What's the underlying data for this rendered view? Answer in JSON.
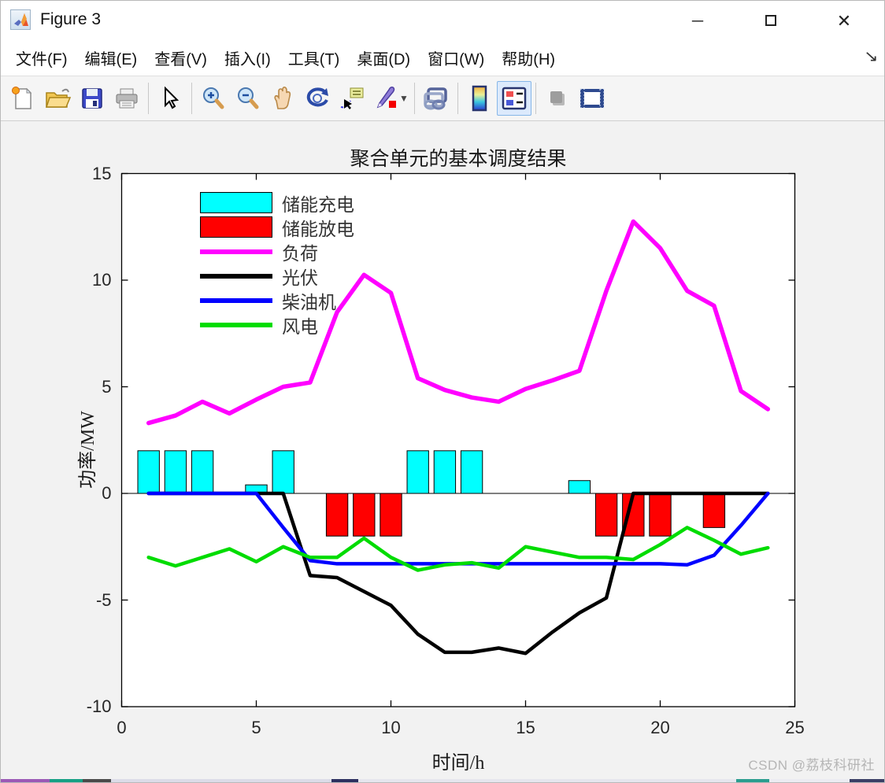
{
  "window": {
    "title": "Figure 3",
    "controls": {
      "minimize": "─",
      "maximize": "",
      "close": "✕"
    }
  },
  "menu": {
    "items": [
      {
        "label": "文件(F)"
      },
      {
        "label": "编辑(E)"
      },
      {
        "label": "查看(V)"
      },
      {
        "label": "插入(I)"
      },
      {
        "label": "工具(T)"
      },
      {
        "label": "桌面(D)"
      },
      {
        "label": "窗口(W)"
      },
      {
        "label": "帮助(H)"
      }
    ],
    "dock_arrow": "↘"
  },
  "toolbar": {
    "icons": [
      "new-figure-icon",
      "open-file-icon",
      "save-figure-icon",
      "print-figure-icon",
      "edit-pointer-icon",
      "zoom-in-icon",
      "zoom-out-icon",
      "pan-hand-icon",
      "rotate-3d-icon",
      "data-cursor-icon",
      "brush-data-icon",
      "link-plot-icon",
      "insert-colorbar-icon",
      "insert-legend-icon",
      "hide-plot-tools-icon",
      "dock-figure-icon"
    ],
    "active_icon": "insert-legend-icon"
  },
  "figure": {
    "watermark": "CSDN @荔枝科研社"
  },
  "chart_data": {
    "type": "bar+line combo",
    "title": "聚合单元的基本调度结果",
    "xlabel": "时间/h",
    "ylabel": "功率/MW",
    "xlim": [
      0,
      25
    ],
    "ylim": [
      -10,
      15
    ],
    "xticks": [
      0,
      5,
      10,
      15,
      20,
      25
    ],
    "yticks": [
      -10,
      -5,
      0,
      5,
      10,
      15
    ],
    "grid": false,
    "legend_position": "upper-left-inside",
    "hours": [
      1,
      2,
      3,
      4,
      5,
      6,
      7,
      8,
      9,
      10,
      11,
      12,
      13,
      14,
      15,
      16,
      17,
      18,
      19,
      20,
      21,
      22,
      23,
      24
    ],
    "bar_width_hours": 0.8,
    "bar_series": [
      {
        "name": "储能充电",
        "color": "#00FFFF",
        "values": [
          2,
          2,
          2,
          0,
          0.4,
          2,
          0,
          0,
          0,
          0,
          2,
          2,
          2,
          0,
          0,
          0,
          0.6,
          0,
          0,
          0,
          0,
          0,
          0,
          0
        ]
      },
      {
        "name": "储能放电",
        "color": "#FF0000",
        "values": [
          0,
          0,
          0,
          0,
          0,
          0,
          0,
          -2,
          -2,
          -2,
          0,
          0,
          0,
          0,
          0,
          0,
          0,
          -2,
          -2,
          -2,
          0,
          -1.6,
          0,
          0
        ]
      }
    ],
    "line_series": [
      {
        "name": "负荷",
        "color": "#FF00FF",
        "width": 5.5,
        "values": [
          3.3,
          3.65,
          4.3,
          3.75,
          4.4,
          5.0,
          5.2,
          8.5,
          10.25,
          9.4,
          5.4,
          4.85,
          4.5,
          4.3,
          4.9,
          5.3,
          5.75,
          9.5,
          12.75,
          11.5,
          9.5,
          8.8,
          4.8,
          3.95
        ]
      },
      {
        "name": "光伏",
        "color": "#000000",
        "width": 4.5,
        "values": [
          0,
          0,
          0,
          0,
          0,
          0,
          -3.85,
          -3.95,
          -4.6,
          -5.25,
          -6.6,
          -7.45,
          -7.45,
          -7.25,
          -7.5,
          -6.5,
          -5.6,
          -4.9,
          0,
          0,
          0,
          0,
          0,
          0
        ]
      },
      {
        "name": "柴油机",
        "color": "#0000FF",
        "width": 4.5,
        "values": [
          0,
          0,
          0,
          0,
          0,
          -1.6,
          -3.15,
          -3.3,
          -3.3,
          -3.3,
          -3.3,
          -3.3,
          -3.3,
          -3.3,
          -3.3,
          -3.3,
          -3.3,
          -3.3,
          -3.3,
          -3.3,
          -3.35,
          -2.9,
          -1.5,
          0
        ]
      },
      {
        "name": "风电",
        "color": "#00DC00",
        "width": 4.5,
        "values": [
          -3.0,
          -3.4,
          -3.0,
          -2.6,
          -3.2,
          -2.5,
          -3.0,
          -3.0,
          -2.1,
          -3.0,
          -3.6,
          -3.35,
          -3.25,
          -3.5,
          -2.5,
          -2.75,
          -3.0,
          -3.0,
          -3.1,
          -2.4,
          -1.6,
          -2.2,
          -2.85,
          -2.55
        ]
      }
    ]
  }
}
